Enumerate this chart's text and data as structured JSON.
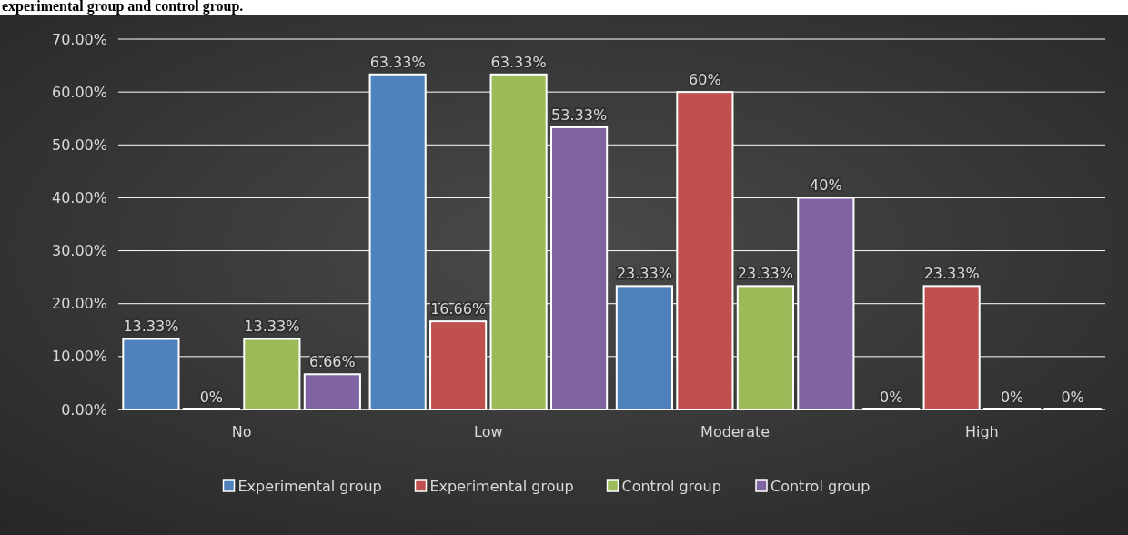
{
  "chart_data": {
    "type": "bar",
    "title": "experimental group and control group.",
    "categories": [
      "No",
      "Low",
      "Moderate",
      "High"
    ],
    "series": [
      {
        "name": "Experimental group",
        "color": "#4f81bd",
        "values": [
          13.33,
          63.33,
          23.33,
          0
        ],
        "value_labels": [
          "13.33%",
          "63.33%",
          "23.33%",
          "0%"
        ]
      },
      {
        "name": "Experimental group",
        "color": "#c0504d",
        "values": [
          0,
          16.66,
          60,
          23.33
        ],
        "value_labels": [
          "0%",
          "16.66%",
          "60%",
          "23.33%"
        ]
      },
      {
        "name": "Control group",
        "color": "#9bbb59",
        "values": [
          13.33,
          63.33,
          23.33,
          0
        ],
        "value_labels": [
          "13.33%",
          "63.33%",
          "23.33%",
          "0%"
        ]
      },
      {
        "name": "Control group",
        "color": "#8064a2",
        "values": [
          6.66,
          53.33,
          40,
          0
        ],
        "value_labels": [
          "6.66%",
          "53.33%",
          "40%",
          "0%"
        ]
      }
    ],
    "ylim": [
      0,
      70
    ],
    "yticks": [
      {
        "value": 0,
        "label": "0.00%"
      },
      {
        "value": 10,
        "label": "10.00%"
      },
      {
        "value": 20,
        "label": "20.00%"
      },
      {
        "value": 30,
        "label": "30.00%"
      },
      {
        "value": 40,
        "label": "40.00%"
      },
      {
        "value": 50,
        "label": "50.00%"
      },
      {
        "value": 60,
        "label": "60.00%"
      },
      {
        "value": 70,
        "label": "70.00%"
      }
    ],
    "grid": "y",
    "legend": "bottom"
  }
}
